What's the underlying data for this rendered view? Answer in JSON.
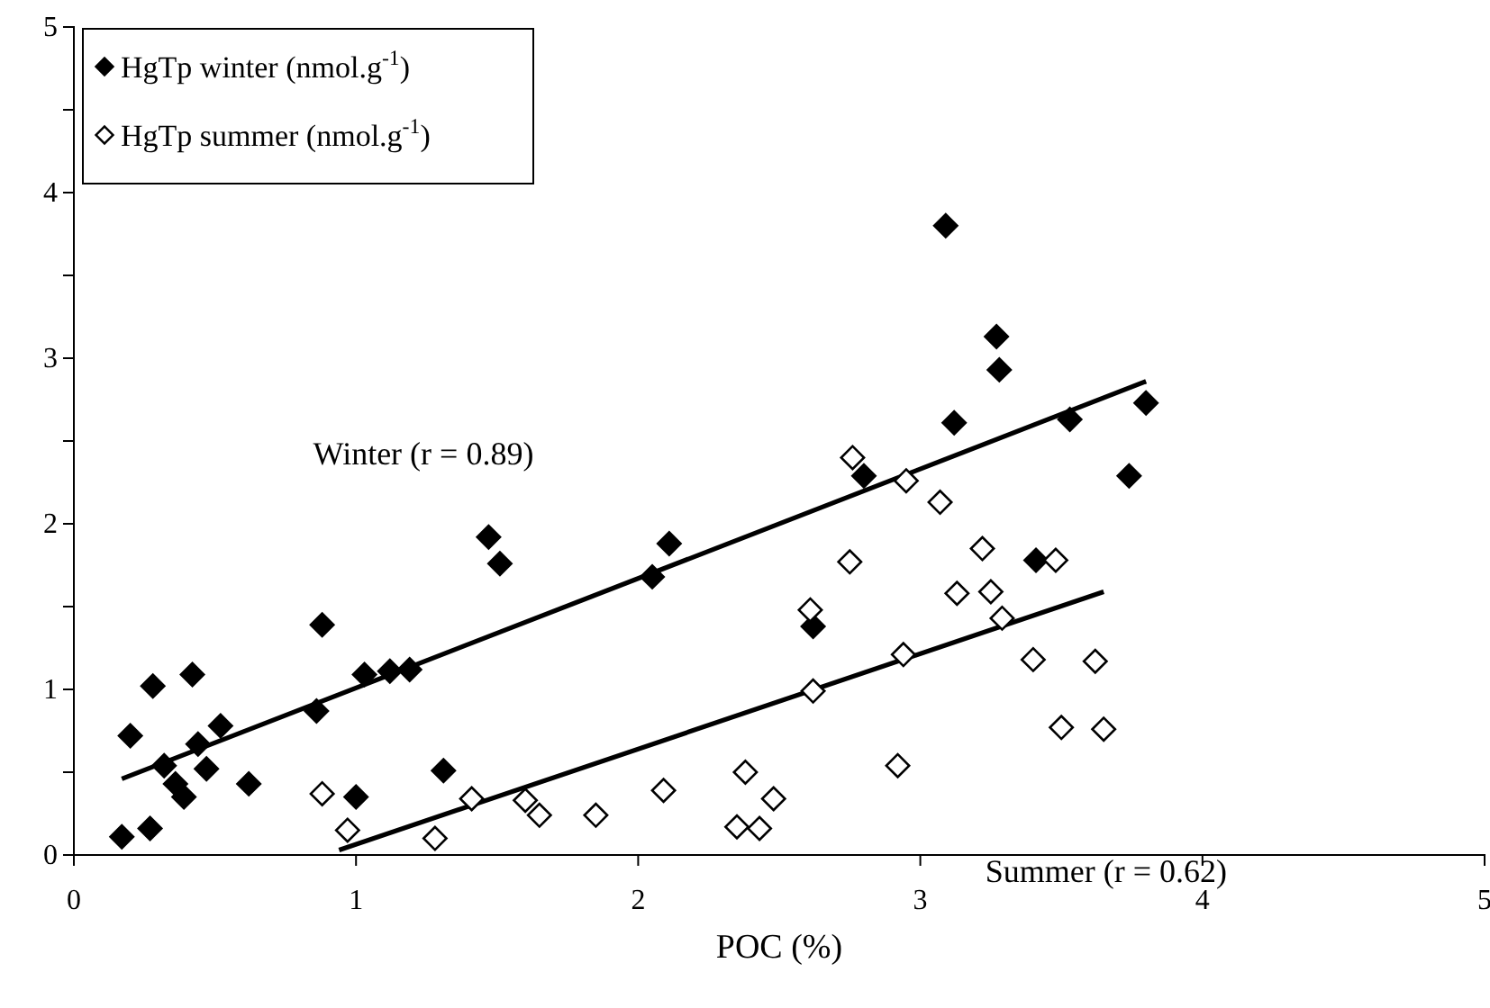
{
  "chart_data": {
    "type": "scatter",
    "xlabel": "POC  (%)",
    "xlim": [
      0,
      5
    ],
    "xticks": [
      0,
      1,
      2,
      3,
      4,
      5
    ],
    "ylim": [
      0,
      5
    ],
    "yticks": [
      0,
      {
        "value": 0.5,
        "label": null
      },
      1,
      {
        "value": 1.5,
        "label": null
      },
      2,
      {
        "value": 2.5,
        "label": null
      },
      3,
      {
        "value": 3.5,
        "label": null
      },
      4,
      {
        "value": 4.5,
        "label": null
      },
      5
    ],
    "marker": "diamond",
    "legend": "top left",
    "grid": false,
    "annotations": [
      "Winter (r = 0.89)",
      "Summer (r = 0.62)"
    ],
    "series": [
      {
        "name": "HgTp winter (nmol.g$^{-1}$)",
        "color": "#000000",
        "x": [
          0.17,
          0.27,
          0.2,
          0.28,
          0.42,
          0.32,
          0.36,
          0.39,
          0.44,
          0.47,
          0.52,
          0.62,
          0.86,
          0.88,
          1.0,
          1.03,
          1.12,
          1.19,
          1.31,
          1.47,
          1.51,
          2.11,
          2.05,
          2.62,
          2.8,
          3.41,
          3.09,
          3.27,
          3.28,
          3.12,
          3.53,
          3.8,
          3.74
        ],
        "values": [
          0.11,
          0.16,
          0.72,
          1.02,
          1.09,
          0.54,
          0.43,
          0.35,
          0.67,
          0.52,
          0.78,
          0.43,
          0.87,
          1.39,
          0.35,
          1.09,
          1.11,
          1.12,
          0.51,
          1.92,
          1.76,
          1.88,
          1.68,
          1.38,
          2.29,
          1.78,
          3.8,
          3.13,
          2.93,
          2.61,
          2.63,
          2.73,
          2.29
        ]
      },
      {
        "name": "HgTp summer (nmol.g$^{-1}$)",
        "color": "#ffffff",
        "x": [
          0.88,
          0.97,
          1.28,
          1.41,
          1.6,
          1.65,
          1.85,
          2.09,
          2.38,
          2.48,
          2.35,
          2.43,
          2.62,
          2.61,
          2.75,
          2.76,
          2.95,
          3.07,
          2.92,
          2.94,
          3.13,
          3.22,
          3.25,
          3.29,
          3.4,
          3.48,
          3.5,
          3.62,
          3.65
        ],
        "values": [
          0.37,
          0.15,
          0.1,
          0.34,
          0.33,
          0.24,
          0.24,
          0.39,
          0.5,
          0.34,
          0.17,
          0.16,
          0.99,
          1.48,
          1.77,
          2.4,
          2.26,
          2.13,
          0.54,
          1.21,
          1.58,
          1.85,
          1.59,
          1.43,
          1.18,
          1.78,
          0.77,
          1.17,
          0.76
        ]
      },
      {
        "type": "line",
        "marker": "none",
        "color": "#000000",
        "x": [
          0.17,
          3.8
        ],
        "values": [
          0.46,
          2.86
        ]
      },
      {
        "type": "line",
        "marker": "none",
        "color": "#000000",
        "x": [
          0.94,
          3.65
        ],
        "values": [
          0.03,
          1.59
        ]
      }
    ]
  }
}
